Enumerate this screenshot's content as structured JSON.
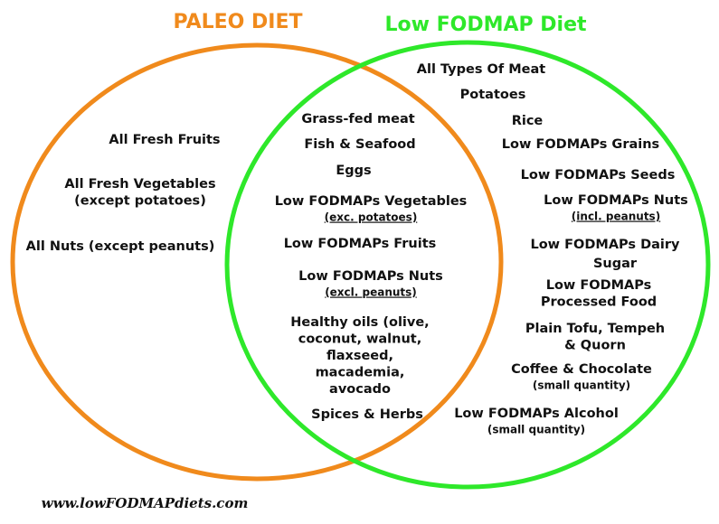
{
  "header": {
    "left_title": "PALEO DIET",
    "right_title": "Low FODMAP Diet"
  },
  "left": {
    "items": [
      {
        "lines": [
          "All Fresh Fruits"
        ]
      },
      {
        "lines": [
          "All Fresh Vegetables",
          "(except potatoes)"
        ]
      },
      {
        "lines": [
          "All Nuts (except peanuts)"
        ]
      }
    ]
  },
  "middle": {
    "items": [
      {
        "lines": [
          "Grass-fed meat"
        ]
      },
      {
        "lines": [
          "Fish & Seafood"
        ]
      },
      {
        "lines": [
          "Eggs"
        ]
      },
      {
        "lines": [
          "Low FODMAPs Vegetables"
        ],
        "note": "(exc. potatoes)"
      },
      {
        "lines": [
          "Low FODMAPs Fruits"
        ]
      },
      {
        "lines": [
          "Low FODMAPs Nuts"
        ],
        "note": "(excl. peanuts)"
      },
      {
        "lines": [
          "Healthy oils (olive,",
          "coconut, walnut,",
          "flaxseed,",
          "macademia,",
          "avocado"
        ]
      },
      {
        "lines": [
          "Spices & Herbs"
        ]
      }
    ]
  },
  "right": {
    "items": [
      {
        "lines": [
          "All Types Of Meat"
        ]
      },
      {
        "lines": [
          "Potatoes"
        ]
      },
      {
        "lines": [
          "Rice"
        ]
      },
      {
        "lines": [
          "Low FODMAPs Grains"
        ]
      },
      {
        "lines": [
          "Low FODMAPs Seeds"
        ]
      },
      {
        "lines": [
          "Low FODMAPs Nuts"
        ],
        "note": "(incl. peanuts)"
      },
      {
        "lines": [
          "Low FODMAPs Dairy"
        ]
      },
      {
        "lines": [
          "Sugar"
        ]
      },
      {
        "lines": [
          "Low FODMAPs",
          "Processed Food"
        ]
      },
      {
        "lines": [
          "Plain Tofu, Tempeh",
          "& Quorn"
        ]
      },
      {
        "lines": [
          "Coffee & Chocolate"
        ],
        "note": "(small quantity)"
      },
      {
        "lines": [
          "Low FODMAPs Alcohol"
        ],
        "note": "(small quantity)"
      }
    ]
  },
  "footer": {
    "url": "www.lowFODMAPdiets.com"
  }
}
